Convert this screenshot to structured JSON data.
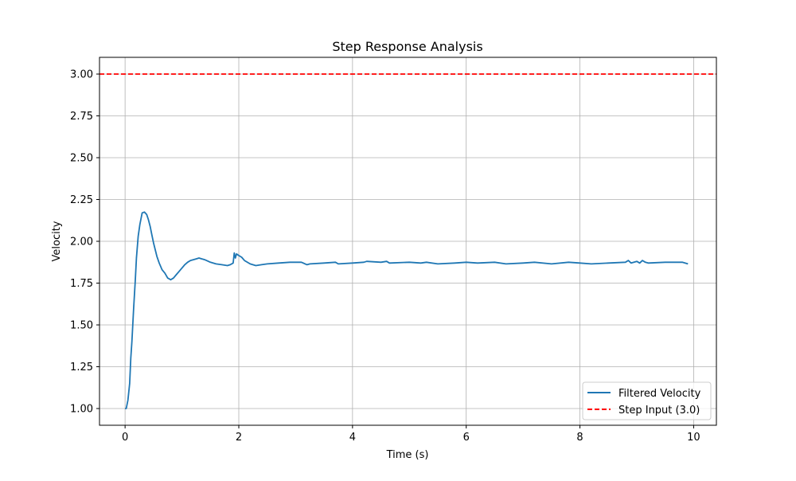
{
  "chart_data": {
    "type": "line",
    "title": "Step Response Analysis",
    "xlabel": "Time (s)",
    "ylabel": "Velocity",
    "xlim": [
      -0.45,
      10.4
    ],
    "ylim": [
      0.9,
      3.1
    ],
    "x_ticks": [
      0,
      2,
      4,
      6,
      8,
      10
    ],
    "x_tick_labels": [
      "0",
      "2",
      "4",
      "6",
      "8",
      "10"
    ],
    "y_ticks": [
      1.0,
      1.25,
      1.5,
      1.75,
      2.0,
      2.25,
      2.5,
      2.75,
      3.0
    ],
    "y_tick_labels": [
      "1.00",
      "1.25",
      "1.50",
      "1.75",
      "2.00",
      "2.25",
      "2.50",
      "2.75",
      "3.00"
    ],
    "grid": true,
    "legend_position": "bottom-right",
    "series": [
      {
        "name": "Filtered Velocity",
        "color": "#1f77b4",
        "style": "solid",
        "x": [
          0,
          0.02,
          0.05,
          0.08,
          0.1,
          0.12,
          0.15,
          0.18,
          0.2,
          0.23,
          0.26,
          0.3,
          0.34,
          0.38,
          0.41,
          0.44,
          0.47,
          0.5,
          0.53,
          0.56,
          0.6,
          0.65,
          0.7,
          0.75,
          0.78,
          0.8,
          0.85,
          0.9,
          0.95,
          1.0,
          1.05,
          1.1,
          1.15,
          1.2,
          1.25,
          1.3,
          1.35,
          1.4,
          1.5,
          1.6,
          1.7,
          1.8,
          1.85,
          1.9,
          1.92,
          1.94,
          1.96,
          2.0,
          2.05,
          2.1,
          2.2,
          2.3,
          2.4,
          2.5,
          2.7,
          2.9,
          3.1,
          3.2,
          3.25,
          3.5,
          3.7,
          3.75,
          4.0,
          4.2,
          4.25,
          4.5,
          4.6,
          4.65,
          5.0,
          5.2,
          5.3,
          5.5,
          5.8,
          6.0,
          6.2,
          6.5,
          6.7,
          7.0,
          7.2,
          7.5,
          7.8,
          8.0,
          8.2,
          8.5,
          8.8,
          8.85,
          8.9,
          9.0,
          9.05,
          9.1,
          9.15,
          9.2,
          9.5,
          9.8,
          9.9
        ],
        "y": [
          1.0,
          1.0,
          1.05,
          1.15,
          1.3,
          1.4,
          1.6,
          1.77,
          1.9,
          2.03,
          2.1,
          2.17,
          2.175,
          2.16,
          2.13,
          2.09,
          2.04,
          1.99,
          1.95,
          1.91,
          1.87,
          1.83,
          1.81,
          1.78,
          1.775,
          1.77,
          1.78,
          1.8,
          1.82,
          1.84,
          1.86,
          1.875,
          1.885,
          1.89,
          1.895,
          1.9,
          1.895,
          1.89,
          1.875,
          1.865,
          1.86,
          1.855,
          1.86,
          1.87,
          1.93,
          1.9,
          1.925,
          1.915,
          1.905,
          1.885,
          1.865,
          1.855,
          1.86,
          1.865,
          1.87,
          1.875,
          1.875,
          1.86,
          1.865,
          1.87,
          1.875,
          1.865,
          1.87,
          1.875,
          1.88,
          1.875,
          1.88,
          1.87,
          1.875,
          1.87,
          1.875,
          1.865,
          1.87,
          1.875,
          1.87,
          1.875,
          1.865,
          1.87,
          1.875,
          1.865,
          1.875,
          1.87,
          1.865,
          1.87,
          1.875,
          1.885,
          1.87,
          1.88,
          1.87,
          1.885,
          1.875,
          1.87,
          1.875,
          1.875,
          1.865
        ]
      },
      {
        "name": "Step Input (3.0)",
        "color": "#ff0000",
        "style": "dashed",
        "y_constant": 3.0
      }
    ]
  }
}
